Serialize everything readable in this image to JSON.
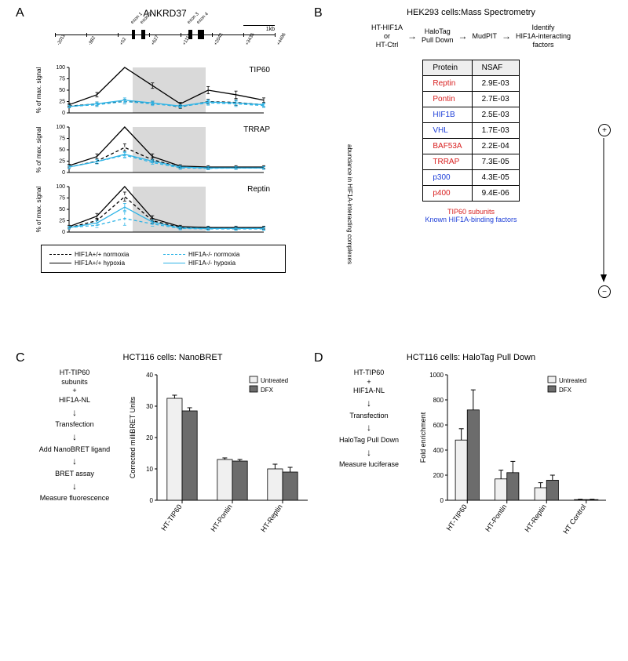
{
  "panelA": {
    "label": "A",
    "geneTitle": "ANKRD37",
    "scaleLabel": "1kb",
    "exons": [
      {
        "x": 98,
        "w": 4,
        "label": "exon 1"
      },
      {
        "x": 110,
        "w": 5,
        "label": "exon 2"
      },
      {
        "x": 170,
        "w": 5,
        "label": "exon 3"
      },
      {
        "x": 182,
        "w": 8,
        "label": "exon 4"
      }
    ],
    "xTicks": [
      "-2011",
      "-982",
      "+52",
      "+627",
      "+1114",
      "+2042",
      "+3436",
      "+4496"
    ],
    "xTickPos": [
      0,
      40,
      80,
      120,
      160,
      200,
      240,
      280
    ],
    "shade": {
      "x": 92,
      "w": 104
    },
    "yTicks": [
      0,
      25,
      50,
      75,
      100
    ],
    "ylabel": "% of max. signal",
    "legend": [
      {
        "text": "HIF1A+/+ normoxia",
        "color": "#000000",
        "dash": "dashed"
      },
      {
        "text": "HIF1A-/- normoxia",
        "color": "#2fb4e6",
        "dash": "dashed"
      },
      {
        "text": "HIF1A+/+ hypoxia",
        "color": "#000000",
        "dash": "solid"
      },
      {
        "text": "HIF1A-/- hypoxia",
        "color": "#2fb4e6",
        "dash": "solid"
      }
    ],
    "charts": [
      {
        "title": "TIP60",
        "series": [
          {
            "color": "#000000",
            "dash": "4,3",
            "y": [
              15,
              20,
              25,
              22,
              13,
              25,
              23,
              18
            ]
          },
          {
            "color": "#2fb4e6",
            "dash": "4,3",
            "y": [
              14,
              18,
              25,
              20,
              14,
              22,
              20,
              16
            ]
          },
          {
            "color": "#000000",
            "dash": "",
            "y": [
              18,
              40,
              100,
              60,
              20,
              50,
              40,
              28
            ]
          },
          {
            "color": "#2fb4e6",
            "dash": "",
            "y": [
              14,
              20,
              28,
              22,
              15,
              24,
              22,
              18
            ]
          }
        ],
        "err": [
          [
            3,
            4,
            5,
            4,
            3,
            5,
            6,
            4
          ],
          [
            3,
            4,
            5,
            4,
            3,
            5,
            6,
            4
          ],
          [
            3,
            5,
            0,
            6,
            3,
            8,
            8,
            5
          ],
          [
            3,
            4,
            5,
            4,
            3,
            5,
            6,
            4
          ]
        ]
      },
      {
        "title": "TRRAP",
        "series": [
          {
            "color": "#000000",
            "dash": "4,3",
            "y": [
              12,
              25,
              55,
              28,
              12,
              10,
              10,
              10
            ]
          },
          {
            "color": "#2fb4e6",
            "dash": "4,3",
            "y": [
              12,
              24,
              38,
              22,
              10,
              9,
              10,
              10
            ]
          },
          {
            "color": "#000000",
            "dash": "",
            "y": [
              15,
              35,
              100,
              35,
              14,
              12,
              12,
              12
            ]
          },
          {
            "color": "#2fb4e6",
            "dash": "",
            "y": [
              12,
              24,
              40,
              25,
              12,
              10,
              10,
              10
            ]
          }
        ],
        "err": [
          [
            3,
            5,
            8,
            5,
            3,
            3,
            3,
            3
          ],
          [
            3,
            5,
            6,
            4,
            3,
            3,
            3,
            3
          ],
          [
            3,
            6,
            0,
            6,
            3,
            3,
            3,
            3
          ],
          [
            3,
            5,
            6,
            4,
            3,
            3,
            3,
            3
          ]
        ]
      },
      {
        "title": "Reptin",
        "series": [
          {
            "color": "#000000",
            "dash": "4,3",
            "y": [
              10,
              25,
              78,
              25,
              10,
              8,
              8,
              8
            ]
          },
          {
            "color": "#2fb4e6",
            "dash": "4,3",
            "y": [
              10,
              15,
              30,
              18,
              8,
              7,
              7,
              7
            ]
          },
          {
            "color": "#000000",
            "dash": "",
            "y": [
              12,
              35,
              100,
              30,
              12,
              10,
              10,
              10
            ]
          },
          {
            "color": "#2fb4e6",
            "dash": "",
            "y": [
              10,
              20,
              55,
              22,
              9,
              8,
              8,
              8
            ]
          }
        ],
        "err": [
          [
            3,
            5,
            10,
            5,
            3,
            3,
            3,
            3
          ],
          [
            3,
            5,
            15,
            5,
            3,
            3,
            3,
            3
          ],
          [
            3,
            6,
            0,
            6,
            3,
            3,
            3,
            3
          ],
          [
            3,
            5,
            8,
            5,
            3,
            3,
            3,
            3
          ]
        ]
      }
    ]
  },
  "panelB": {
    "label": "B",
    "title": "HEK293 cells:Mass Spectrometry",
    "flow": [
      "HT-HIF1A\nor\nHT-Ctrl",
      "HaloTag\nPull Down",
      "MudPIT",
      "Identify\nHIF1A-interacting\nfactors"
    ],
    "columns": [
      "Protein",
      "NSAF"
    ],
    "rows": [
      {
        "protein": "Reptin",
        "nsaf": "2.9E-03",
        "color": "#d81e1e"
      },
      {
        "protein": "Pontin",
        "nsaf": "2.7E-03",
        "color": "#d81e1e"
      },
      {
        "protein": "HIF1B",
        "nsaf": "2.5E-03",
        "color": "#1e3fd8"
      },
      {
        "protein": "VHL",
        "nsaf": "1.7E-03",
        "color": "#1e3fd8"
      },
      {
        "protein": "BAF53A",
        "nsaf": "2.2E-04",
        "color": "#d81e1e"
      },
      {
        "protein": "TRRAP",
        "nsaf": "7.3E-05",
        "color": "#d81e1e"
      },
      {
        "protein": "p300",
        "nsaf": "4.3E-05",
        "color": "#1e3fd8"
      },
      {
        "protein": "p400",
        "nsaf": "9.4E-06",
        "color": "#d81e1e"
      }
    ],
    "abundanceLabel": "abundance in HIF1A-interacting complexes",
    "note1": "TIP60 subunits",
    "note1Color": "#d81e1e",
    "note2": "Known HIF1A-binding factors",
    "note2Color": "#1e3fd8"
  },
  "panelC": {
    "label": "C",
    "title": "HCT116 cells: NanoBRET",
    "flow": [
      "HT-TIP60\nsubunits\n+\nHIF1A-NL",
      "Transfection",
      "Add NanoBRET ligand",
      "BRET assay",
      "Measure fluorescence"
    ],
    "ylabel": "Corrected milliBRET Units",
    "ymax": 40,
    "ytick": 10,
    "categories": [
      "HT-TIP60",
      "HT-Pontin",
      "HT-Reptin"
    ],
    "series": [
      {
        "name": "Untreated",
        "color": "#f0f0f0",
        "values": [
          32.5,
          13,
          10
        ],
        "err": [
          1,
          0.5,
          1.5
        ]
      },
      {
        "name": "DFX",
        "color": "#6c6c6c",
        "values": [
          28.5,
          12.5,
          9
        ],
        "err": [
          1,
          0.5,
          1.5
        ]
      }
    ]
  },
  "panelD": {
    "label": "D",
    "title": "HCT116 cells: HaloTag Pull Down",
    "flow": [
      "HT-TIP60\n+\nHIF1A-NL",
      "Transfection",
      "HaloTag Pull Down",
      "Measure luciferase"
    ],
    "ylabel": "Fold enrichment",
    "ymax": 1000,
    "ytick": 200,
    "categories": [
      "HT-TIP60",
      "HT-Pontin",
      "HT-Reptin",
      "HT Control"
    ],
    "series": [
      {
        "name": "Untreated",
        "color": "#f0f0f0",
        "values": [
          480,
          170,
          100,
          5
        ],
        "err": [
          90,
          70,
          40,
          3
        ]
      },
      {
        "name": "DFX",
        "color": "#6c6c6c",
        "values": [
          720,
          220,
          160,
          5
        ],
        "err": [
          160,
          90,
          40,
          3
        ]
      }
    ]
  }
}
